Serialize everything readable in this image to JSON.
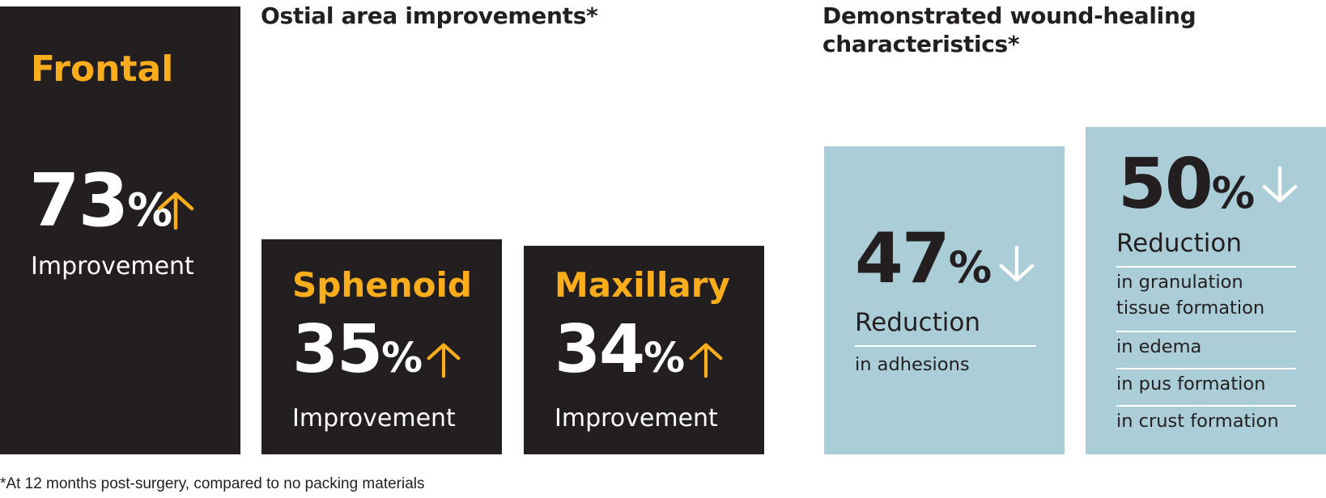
{
  "chart_data": [
    {
      "type": "bar",
      "title": "Ostial area improvements*",
      "categories": [
        "Frontal",
        "Sphenoid",
        "Maxillary"
      ],
      "values": [
        73,
        35,
        34
      ],
      "value_labels": [
        "73",
        "35",
        "34"
      ],
      "unit": "%",
      "value_caption": "Improvement",
      "direction": "up",
      "ylim": [
        0,
        73
      ],
      "colors": {
        "bar": "#231f20",
        "category_text": "#fbad1b",
        "value_text": "#ffffff",
        "arrow": "#fbad1b"
      }
    },
    {
      "type": "bar",
      "title": "Demonstrated wound-healing characteristics*",
      "categories": [
        "Reduction",
        "Reduction"
      ],
      "values": [
        47,
        50
      ],
      "value_labels": [
        "47",
        "50"
      ],
      "unit": "%",
      "direction": "down",
      "ylim": [
        0,
        50
      ],
      "details": [
        [
          "in adhesions"
        ],
        [
          "in granulation tissue formation",
          "in edema",
          "in pus formation",
          "in crust formation"
        ]
      ],
      "colors": {
        "bar": "#abcdd7",
        "value_text": "#231f20",
        "arrow": "#ffffff"
      }
    }
  ],
  "footnote": "*At 12 months post-surgery, compared to no packing materials",
  "colors": {
    "dark": "#231f20",
    "orange": "#fbad1b",
    "blue": "#abcdd7",
    "white": "#ffffff"
  }
}
